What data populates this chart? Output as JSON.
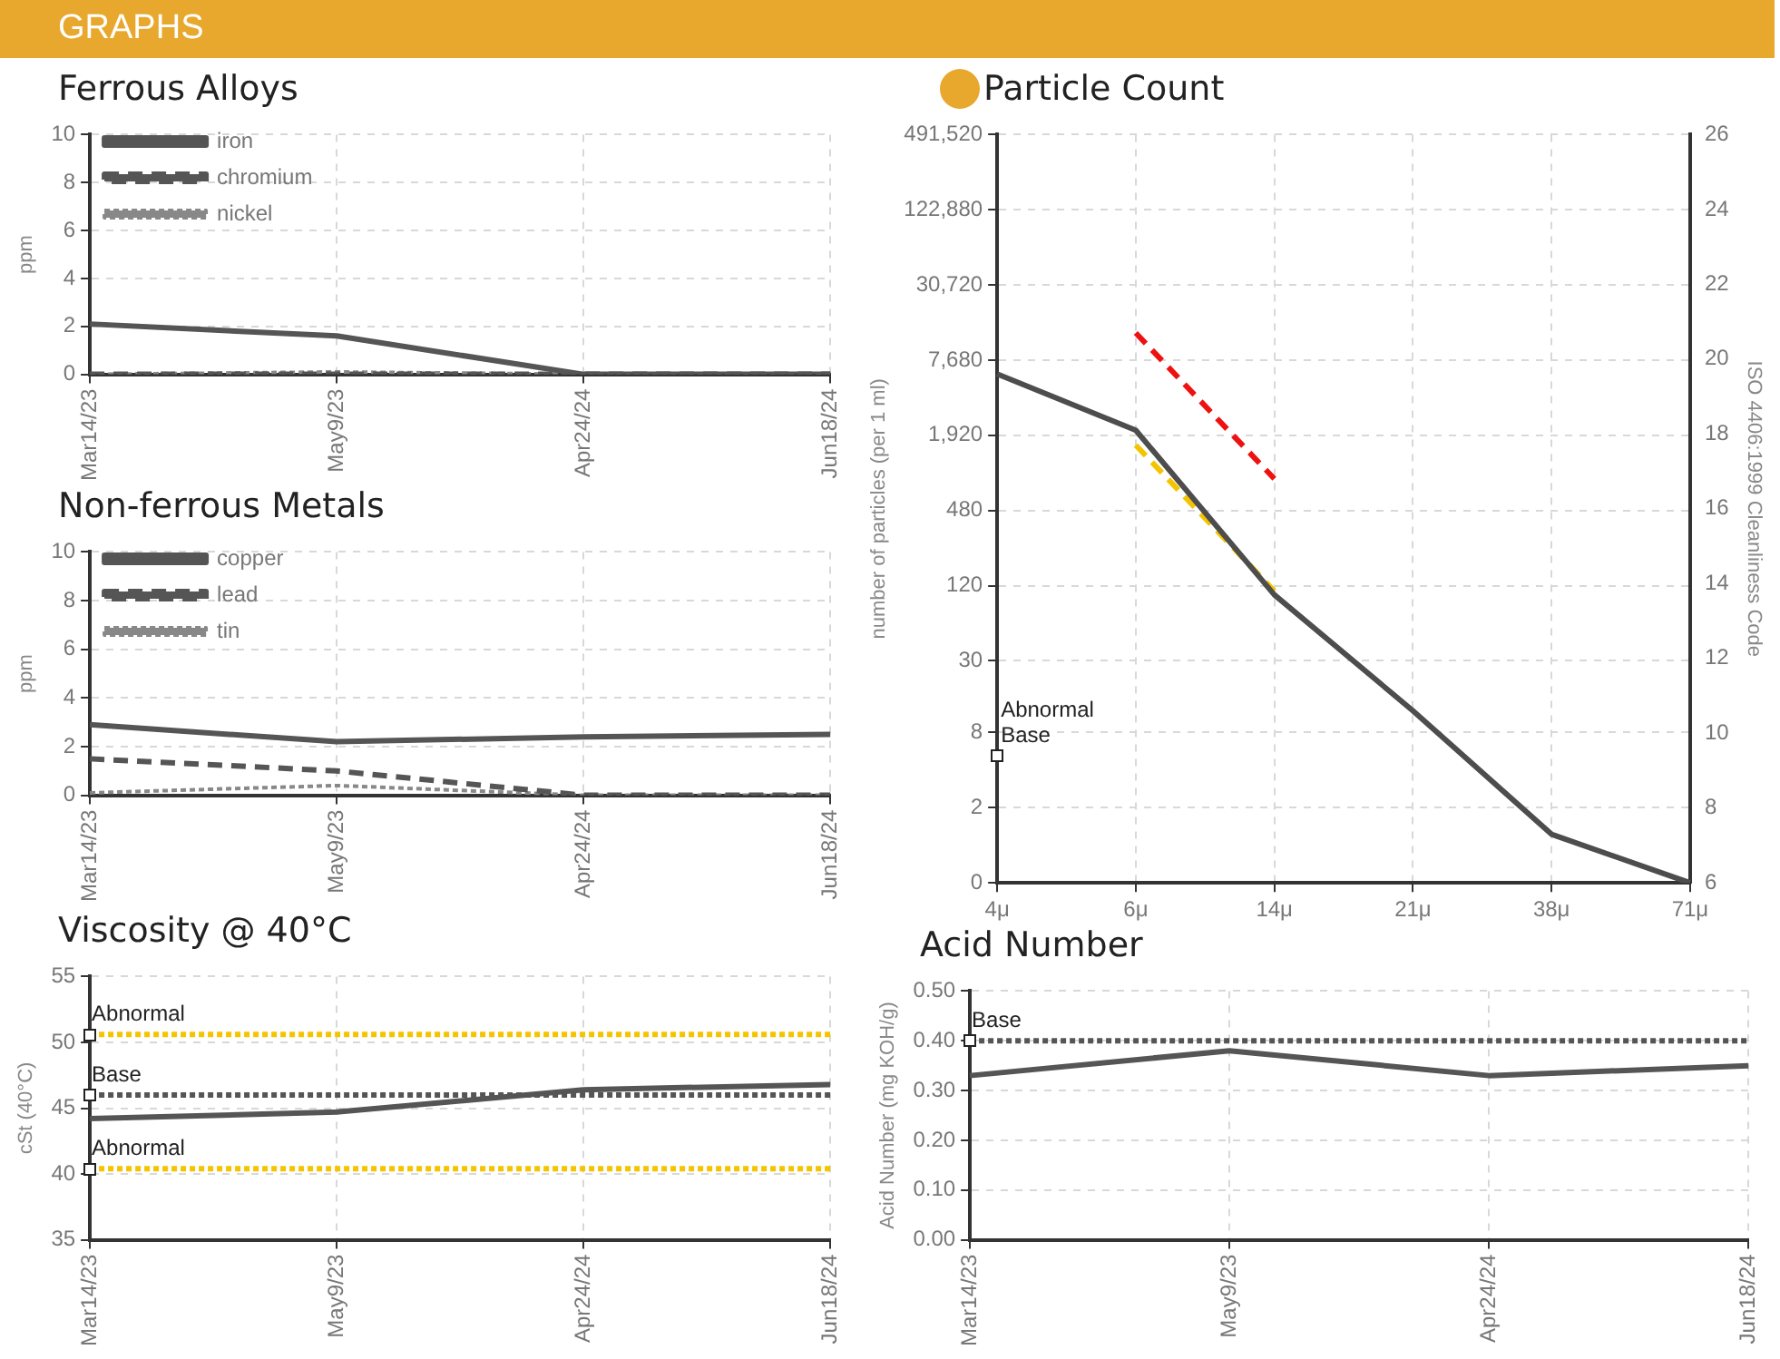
{
  "chart_data": [
    {
      "type": "other",
      "title": "GRAPHS"
    },
    {
      "type": "line",
      "title": "Ferrous Alloys",
      "ylabel": "ppm",
      "categories": [
        "Mar14/23",
        "May9/23",
        "Apr24/24",
        "Jun18/24"
      ],
      "series": [
        {
          "name": "iron",
          "color": "#555555",
          "line_style": "solid",
          "values": [
            2.1,
            1.6,
            0,
            0
          ]
        },
        {
          "name": "chromium",
          "color": "#555555",
          "line_style": "dashed",
          "values": [
            0,
            0,
            0,
            0
          ]
        },
        {
          "name": "nickel",
          "color": "#888888",
          "line_style": "dotted",
          "values": [
            0,
            0.1,
            0,
            0
          ]
        }
      ],
      "ylim": [
        0,
        10
      ],
      "yticks": [
        0,
        2,
        4,
        6,
        8,
        10
      ],
      "grid": true,
      "legend": "top left",
      "marker": "none"
    },
    {
      "type": "line",
      "title": "Particle Count",
      "ylabel": "number of particles (per 1 ml)",
      "y2label": "ISO 4406:1999 Cleanliness Code",
      "categories": [
        "4μ",
        "6μ",
        "14μ",
        "21μ",
        "38μ",
        "71μ"
      ],
      "series": [
        {
          "color": "#4d4d4d",
          "line_style": "solid",
          "axis": "y2",
          "values": [
            19.6,
            18.1,
            13.7,
            10.6,
            7.3,
            6
          ]
        },
        {
          "color": "#ee1111",
          "line_style": "dashed",
          "axis": "y2",
          "values": [
            null,
            20.7,
            16.8,
            null,
            null,
            null
          ]
        },
        {
          "color": "#f5c400",
          "line_style": "dashed",
          "axis": "y2",
          "values": [
            null,
            17.7,
            13.8,
            null,
            null,
            null
          ]
        }
      ],
      "log": "y",
      "ylim": [
        0.5,
        491520
      ],
      "yticks": [
        {
          "value": 0.5,
          "label": "0"
        },
        2,
        8,
        30,
        120,
        480,
        {
          "value": 1920,
          "label": "1,920"
        },
        {
          "value": 7680,
          "label": "7,680"
        },
        {
          "value": 30720,
          "label": "30,720"
        },
        {
          "value": 122880,
          "label": "122,880"
        },
        {
          "value": 491520,
          "label": "491,520"
        }
      ],
      "y2lim": [
        6,
        26
      ],
      "y2ticks": [
        6,
        8,
        10,
        12,
        14,
        16,
        18,
        20,
        22,
        24,
        26
      ],
      "grid": true,
      "marker": "none",
      "annotations": [
        "Base",
        "Abnormal"
      ]
    },
    {
      "type": "line",
      "title": "Non-ferrous Metals",
      "ylabel": "ppm",
      "categories": [
        "Mar14/23",
        "May9/23",
        "Apr24/24",
        "Jun18/24"
      ],
      "series": [
        {
          "name": "copper",
          "color": "#555555",
          "line_style": "solid",
          "values": [
            2.9,
            2.2,
            2.4,
            2.5
          ]
        },
        {
          "name": "lead",
          "color": "#555555",
          "line_style": "dashed",
          "values": [
            1.5,
            1.0,
            0,
            0
          ]
        },
        {
          "name": "tin",
          "color": "#888888",
          "line_style": "dotted",
          "values": [
            0.1,
            0.4,
            0,
            0
          ]
        }
      ],
      "ylim": [
        0,
        10
      ],
      "yticks": [
        0,
        2,
        4,
        6,
        8,
        10
      ],
      "grid": true,
      "legend": "top left",
      "marker": "none"
    },
    {
      "type": "line",
      "title": "Viscosity @ 40°C",
      "ylabel": "cSt (40°C)",
      "categories": [
        "Mar14/23",
        "May9/23",
        "Apr24/24",
        "Jun18/24"
      ],
      "series": [
        {
          "color": "#555555",
          "line_style": "solid",
          "values": [
            44.2,
            44.7,
            46.4,
            46.8
          ]
        }
      ],
      "ylim": [
        35,
        55
      ],
      "yticks": [
        35,
        40,
        45,
        50,
        55
      ],
      "grid": true,
      "marker": "none",
      "ref_lines": [
        {
          "axis": "y",
          "value": 50.6,
          "label": "Abnormal",
          "color": "#f5c400",
          "line_style": "dotted"
        },
        {
          "axis": "y",
          "value": 46,
          "label": "Base",
          "color": "#555555",
          "line_style": "dotted"
        },
        {
          "axis": "y",
          "value": 40.4,
          "label": "Abnormal",
          "color": "#f5c400",
          "line_style": "dotted"
        }
      ]
    },
    {
      "type": "line",
      "title": "Acid Number",
      "ylabel": "Acid Number (mg KOH/g)",
      "categories": [
        "Mar14/23",
        "May9/23",
        "Apr24/24",
        "Jun18/24"
      ],
      "series": [
        {
          "color": "#555555",
          "line_style": "solid",
          "values": [
            0.33,
            0.38,
            0.33,
            0.35
          ]
        }
      ],
      "ylim": [
        0,
        0.5
      ],
      "yticks": [
        {
          "value": 0,
          "label": "0.00"
        },
        {
          "value": 0.1,
          "label": "0.10"
        },
        {
          "value": 0.2,
          "label": "0.20"
        },
        {
          "value": 0.3,
          "label": "0.30"
        },
        {
          "value": 0.4,
          "label": "0.40"
        },
        {
          "value": 0.5,
          "label": "0.50"
        }
      ],
      "grid": true,
      "marker": "none",
      "ref_lines": [
        {
          "axis": "y",
          "value": 0.4,
          "label": "Base",
          "color": "#555555",
          "line_style": "dotted"
        }
      ]
    }
  ]
}
